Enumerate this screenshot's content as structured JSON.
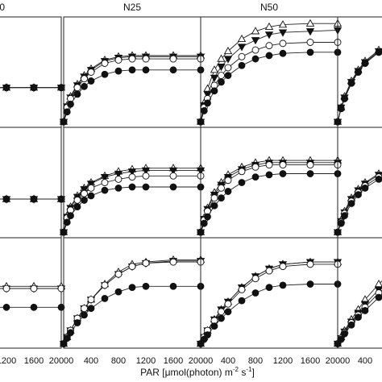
{
  "figure": {
    "panel_titles": [
      "0",
      "N25",
      "N50",
      ""
    ],
    "xlabel_text": "PAR [μmol(photon) m",
    "xlabel_exp1": "-2",
    "xlabel_mid": " s",
    "xlabel_exp2": "-1",
    "xlabel_end": "]",
    "xlabel": "PAR [μmol(photon) m-2 s-1]"
  },
  "chart_data": {
    "type": "line",
    "layout": "grid 3 rows x 4 columns (cropped at left and right edges)",
    "column_titles": [
      "0",
      "N25",
      "N50",
      ""
    ],
    "xlabel": "PAR [μmol(photon) m-2 s-1]",
    "x_ticks": [
      0,
      400,
      800,
      1200,
      1600,
      2000
    ],
    "xlim": [
      0,
      2000
    ],
    "ylim": [
      0,
      1
    ],
    "y_units": "relative (no y-axis labels visible)",
    "grid": false,
    "legend": "none",
    "markers": {
      "triangle_up_open": "open triangle",
      "triangle_down_filled": "filled downward triangle",
      "circle_open": "open circle",
      "circle_filled": "filled circle"
    },
    "x": [
      0,
      50,
      100,
      200,
      300,
      400,
      600,
      800,
      1000,
      1200,
      1600,
      2000
    ],
    "panels": [
      {
        "row": 0,
        "col": 0,
        "title": "0",
        "series": [
          {
            "marker": "triangle_up_open",
            "values": [
              0.04,
              0.1,
              0.16,
              0.26,
              0.32,
              0.35,
              0.36,
              0.36,
              0.36,
              0.36,
              0.36,
              0.36
            ]
          },
          {
            "marker": "triangle_down_filled",
            "values": [
              0.04,
              0.1,
              0.16,
              0.26,
              0.32,
              0.35,
              0.36,
              0.36,
              0.36,
              0.36,
              0.36,
              0.36
            ]
          },
          {
            "marker": "circle_open",
            "values": [
              0.04,
              0.1,
              0.16,
              0.26,
              0.32,
              0.35,
              0.36,
              0.36,
              0.36,
              0.36,
              0.36,
              0.36
            ]
          },
          {
            "marker": "circle_filled",
            "values": [
              0.04,
              0.1,
              0.16,
              0.26,
              0.32,
              0.35,
              0.36,
              0.36,
              0.36,
              0.36,
              0.36,
              0.36
            ]
          }
        ]
      },
      {
        "row": 0,
        "col": 1,
        "title": "N25",
        "series": [
          {
            "marker": "triangle_up_open",
            "values": [
              0.05,
              0.2,
              0.28,
              0.39,
              0.47,
              0.53,
              0.61,
              0.64,
              0.65,
              0.65,
              0.65,
              0.65
            ]
          },
          {
            "marker": "triangle_down_filled",
            "values": [
              0.05,
              0.19,
              0.27,
              0.38,
              0.46,
              0.52,
              0.6,
              0.63,
              0.64,
              0.64,
              0.64,
              0.64
            ]
          },
          {
            "marker": "circle_open",
            "values": [
              0.05,
              0.18,
              0.26,
              0.36,
              0.44,
              0.5,
              0.58,
              0.61,
              0.62,
              0.62,
              0.62,
              0.62
            ]
          },
          {
            "marker": "circle_filled",
            "values": [
              0.05,
              0.14,
              0.21,
              0.3,
              0.37,
              0.42,
              0.48,
              0.51,
              0.52,
              0.52,
              0.52,
              0.52
            ]
          }
        ]
      },
      {
        "row": 0,
        "col": 2,
        "title": "N50",
        "series": [
          {
            "marker": "triangle_up_open",
            "values": [
              0.05,
              0.22,
              0.35,
              0.52,
              0.62,
              0.69,
              0.8,
              0.87,
              0.91,
              0.93,
              0.94,
              0.94
            ]
          },
          {
            "marker": "triangle_down_filled",
            "values": [
              0.05,
              0.2,
              0.3,
              0.45,
              0.55,
              0.62,
              0.73,
              0.79,
              0.84,
              0.86,
              0.87,
              0.88
            ]
          },
          {
            "marker": "circle_open",
            "values": [
              0.05,
              0.18,
              0.26,
              0.38,
              0.47,
              0.54,
              0.64,
              0.7,
              0.74,
              0.76,
              0.77,
              0.77
            ]
          },
          {
            "marker": "circle_filled",
            "values": [
              0.05,
              0.15,
              0.22,
              0.33,
              0.41,
              0.47,
              0.56,
              0.62,
              0.65,
              0.67,
              0.68,
              0.68
            ]
          }
        ]
      },
      {
        "row": 0,
        "col": 3,
        "title": "",
        "series": [
          {
            "marker": "triangle_up_open",
            "values": [
              0.05,
              0.18,
              0.28,
              0.42,
              0.52,
              0.6,
              0.7,
              0.76,
              0.8,
              0.82,
              0.83,
              0.84
            ]
          },
          {
            "marker": "triangle_down_filled",
            "values": [
              0.05,
              0.18,
              0.27,
              0.41,
              0.51,
              0.59,
              0.69,
              0.75,
              0.79,
              0.81,
              0.82,
              0.83
            ]
          },
          {
            "marker": "circle_open",
            "values": [
              0.05,
              0.17,
              0.26,
              0.4,
              0.5,
              0.58,
              0.68,
              0.74,
              0.78,
              0.8,
              0.81,
              0.82
            ]
          },
          {
            "marker": "circle_filled",
            "values": [
              0.05,
              0.17,
              0.26,
              0.4,
              0.5,
              0.58,
              0.68,
              0.74,
              0.78,
              0.8,
              0.81,
              0.82
            ]
          }
        ]
      },
      {
        "row": 1,
        "col": 0,
        "title": "0",
        "series": [
          {
            "marker": "triangle_up_open",
            "values": [
              0.04,
              0.1,
              0.16,
              0.26,
              0.31,
              0.34,
              0.35,
              0.35,
              0.35,
              0.35,
              0.35,
              0.35
            ]
          },
          {
            "marker": "triangle_down_filled",
            "values": [
              0.04,
              0.1,
              0.16,
              0.26,
              0.31,
              0.34,
              0.35,
              0.35,
              0.35,
              0.35,
              0.35,
              0.35
            ]
          },
          {
            "marker": "circle_open",
            "values": [
              0.04,
              0.1,
              0.16,
              0.26,
              0.31,
              0.34,
              0.35,
              0.35,
              0.35,
              0.35,
              0.35,
              0.35
            ]
          },
          {
            "marker": "circle_filled",
            "values": [
              0.04,
              0.1,
              0.16,
              0.26,
              0.31,
              0.34,
              0.35,
              0.35,
              0.35,
              0.35,
              0.35,
              0.35
            ]
          }
        ]
      },
      {
        "row": 1,
        "col": 1,
        "title": "N25",
        "series": [
          {
            "marker": "triangle_up_open",
            "values": [
              0.05,
              0.2,
              0.28,
              0.38,
              0.45,
              0.5,
              0.56,
              0.6,
              0.62,
              0.63,
              0.63,
              0.63
            ]
          },
          {
            "marker": "triangle_down_filled",
            "values": [
              0.05,
              0.19,
              0.27,
              0.37,
              0.44,
              0.49,
              0.55,
              0.58,
              0.6,
              0.61,
              0.61,
              0.61
            ]
          },
          {
            "marker": "circle_open",
            "values": [
              0.05,
              0.18,
              0.25,
              0.34,
              0.4,
              0.45,
              0.5,
              0.53,
              0.55,
              0.56,
              0.56,
              0.56
            ]
          },
          {
            "marker": "circle_filled",
            "values": [
              0.05,
              0.14,
              0.2,
              0.28,
              0.34,
              0.38,
              0.43,
              0.45,
              0.46,
              0.46,
              0.46,
              0.46
            ]
          }
        ]
      },
      {
        "row": 1,
        "col": 2,
        "title": "N50",
        "series": [
          {
            "marker": "triangle_up_open",
            "values": [
              0.05,
              0.18,
              0.27,
              0.41,
              0.5,
              0.57,
              0.64,
              0.68,
              0.7,
              0.7,
              0.7,
              0.7
            ]
          },
          {
            "marker": "triangle_down_filled",
            "values": [
              0.05,
              0.17,
              0.26,
              0.39,
              0.48,
              0.55,
              0.62,
              0.66,
              0.68,
              0.68,
              0.68,
              0.68
            ]
          },
          {
            "marker": "circle_open",
            "values": [
              0.05,
              0.16,
              0.24,
              0.36,
              0.45,
              0.52,
              0.6,
              0.64,
              0.66,
              0.66,
              0.66,
              0.66
            ]
          },
          {
            "marker": "circle_filled",
            "values": [
              0.05,
              0.13,
              0.19,
              0.29,
              0.36,
              0.42,
              0.5,
              0.55,
              0.57,
              0.58,
              0.58,
              0.58
            ]
          }
        ]
      },
      {
        "row": 1,
        "col": 3,
        "title": "",
        "series": [
          {
            "marker": "triangle_up_open",
            "values": [
              0.05,
              0.16,
              0.24,
              0.36,
              0.44,
              0.5,
              0.58,
              0.62,
              0.64,
              0.65,
              0.65,
              0.65
            ]
          },
          {
            "marker": "triangle_down_filled",
            "values": [
              0.05,
              0.15,
              0.23,
              0.35,
              0.43,
              0.49,
              0.57,
              0.61,
              0.63,
              0.64,
              0.64,
              0.64
            ]
          },
          {
            "marker": "circle_open",
            "values": [
              0.05,
              0.14,
              0.22,
              0.33,
              0.41,
              0.47,
              0.55,
              0.59,
              0.61,
              0.62,
              0.62,
              0.62
            ]
          },
          {
            "marker": "circle_filled",
            "values": [
              0.05,
              0.13,
              0.2,
              0.31,
              0.39,
              0.45,
              0.53,
              0.57,
              0.59,
              0.6,
              0.6,
              0.6
            ]
          }
        ]
      },
      {
        "row": 2,
        "col": 0,
        "title": "0",
        "series": [
          {
            "marker": "triangle_up_open",
            "values": [
              0.04,
              0.18,
              0.3,
              0.45,
              0.52,
              0.55,
              0.56,
              0.56,
              0.56,
              0.56,
              0.56,
              0.56
            ]
          },
          {
            "marker": "triangle_down_filled",
            "values": [
              0.04,
              0.17,
              0.28,
              0.43,
              0.5,
              0.53,
              0.54,
              0.54,
              0.54,
              0.54,
              0.54,
              0.54
            ]
          },
          {
            "marker": "circle_open",
            "values": [
              0.04,
              0.17,
              0.28,
              0.43,
              0.5,
              0.53,
              0.54,
              0.54,
              0.54,
              0.54,
              0.54,
              0.54
            ]
          },
          {
            "marker": "circle_filled",
            "values": [
              0.04,
              0.1,
              0.17,
              0.27,
              0.33,
              0.36,
              0.37,
              0.37,
              0.37,
              0.37,
              0.37,
              0.37
            ]
          }
        ]
      },
      {
        "row": 2,
        "col": 1,
        "title": "N25",
        "series": [
          {
            "marker": "triangle_up_open",
            "values": [
              0.04,
              0.1,
              0.16,
              0.27,
              0.36,
              0.44,
              0.58,
              0.69,
              0.76,
              0.78,
              0.8,
              0.8
            ]
          },
          {
            "marker": "triangle_down_filled",
            "values": [
              0.04,
              0.1,
              0.16,
              0.27,
              0.36,
              0.44,
              0.57,
              0.67,
              0.74,
              0.77,
              0.79,
              0.79
            ]
          },
          {
            "marker": "circle_open",
            "values": [
              0.04,
              0.1,
              0.16,
              0.27,
              0.36,
              0.44,
              0.57,
              0.67,
              0.74,
              0.77,
              0.78,
              0.78
            ]
          },
          {
            "marker": "circle_filled",
            "values": [
              0.04,
              0.09,
              0.14,
              0.23,
              0.3,
              0.36,
              0.45,
              0.51,
              0.55,
              0.56,
              0.56,
              0.56
            ]
          }
        ]
      },
      {
        "row": 2,
        "col": 2,
        "title": "N50",
        "series": [
          {
            "marker": "triangle_up_open",
            "values": [
              0.04,
              0.1,
              0.16,
              0.26,
              0.35,
              0.42,
              0.55,
              0.65,
              0.72,
              0.76,
              0.78,
              0.78
            ]
          },
          {
            "marker": "triangle_down_filled",
            "values": [
              0.04,
              0.1,
              0.16,
              0.26,
              0.35,
              0.42,
              0.55,
              0.65,
              0.72,
              0.76,
              0.78,
              0.78
            ]
          },
          {
            "marker": "circle_open",
            "values": [
              0.04,
              0.1,
              0.16,
              0.25,
              0.33,
              0.4,
              0.53,
              0.63,
              0.7,
              0.74,
              0.76,
              0.76
            ]
          },
          {
            "marker": "circle_filled",
            "values": [
              0.04,
              0.08,
              0.12,
              0.2,
              0.27,
              0.33,
              0.43,
              0.5,
              0.55,
              0.57,
              0.58,
              0.58
            ]
          }
        ]
      },
      {
        "row": 2,
        "col": 3,
        "title": "",
        "series": [
          {
            "marker": "triangle_up_open",
            "values": [
              0.04,
              0.1,
              0.16,
              0.26,
              0.35,
              0.44,
              0.58,
              0.7,
              0.78,
              0.83,
              0.86,
              0.87
            ]
          },
          {
            "marker": "triangle_down_filled",
            "values": [
              0.04,
              0.09,
              0.15,
              0.24,
              0.32,
              0.4,
              0.53,
              0.64,
              0.72,
              0.77,
              0.8,
              0.81
            ]
          },
          {
            "marker": "circle_open",
            "values": [
              0.04,
              0.09,
              0.14,
              0.23,
              0.3,
              0.37,
              0.5,
              0.6,
              0.68,
              0.72,
              0.75,
              0.76
            ]
          },
          {
            "marker": "circle_filled",
            "values": [
              0.04,
              0.08,
              0.13,
              0.21,
              0.28,
              0.34,
              0.46,
              0.55,
              0.62,
              0.66,
              0.69,
              0.7
            ]
          }
        ]
      }
    ]
  }
}
